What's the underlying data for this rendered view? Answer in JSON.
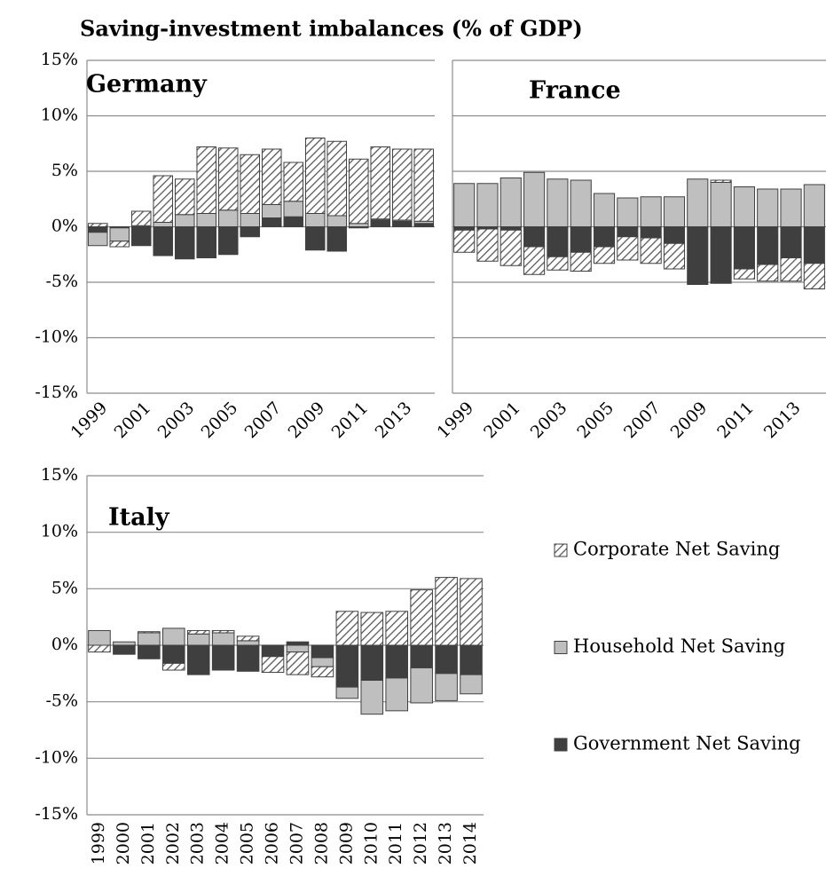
{
  "title": "Saving-investment imbalances (% of GDP)",
  "chart_data": [
    {
      "type": "bar",
      "stacked": true,
      "title": "Germany",
      "categories": [
        "1999",
        null,
        "2001",
        null,
        "2003",
        null,
        "2005",
        null,
        "2007",
        null,
        "2009",
        null,
        "2011",
        null,
        "2013",
        null
      ],
      "ylim": [
        -15,
        15
      ],
      "yticks": [
        {
          "value": -15,
          "label": "-15%"
        },
        {
          "value": -10,
          "label": "-10%"
        },
        {
          "value": -5,
          "label": "-5%"
        },
        {
          "value": 0,
          "label": "0%"
        },
        {
          "value": 5,
          "label": "5%"
        },
        {
          "value": 10,
          "label": "10%"
        },
        {
          "value": 15,
          "label": "15%"
        }
      ],
      "grid": true,
      "series": [
        {
          "color": "#3f3f3f",
          "values": [
            -0.5,
            -0.1,
            -1.7,
            -2.6,
            -2.9,
            -2.8,
            -2.5,
            -0.9,
            0.8,
            0.9,
            -2.1,
            -2.2,
            -0.1,
            0.6,
            0.5,
            0.3
          ]
        },
        {
          "color": "#bfbfbf",
          "values": [
            -1.2,
            -1.2,
            0.1,
            0.4,
            1.1,
            1.2,
            1.5,
            1.2,
            1.2,
            1.4,
            1.2,
            1.0,
            0.3,
            0.1,
            0.1,
            0.2
          ]
        },
        {
          "color": "#595959",
          "hatch": true,
          "values": [
            0.3,
            -0.5,
            1.3,
            4.2,
            3.2,
            6.0,
            5.6,
            5.3,
            5.0,
            3.5,
            6.8,
            6.7,
            5.8,
            6.5,
            6.4,
            6.5
          ]
        }
      ]
    },
    {
      "type": "bar",
      "stacked": true,
      "title": "France",
      "categories": [
        "1999",
        null,
        "2001",
        null,
        "2003",
        null,
        "2005",
        null,
        "2007",
        null,
        "2009",
        null,
        "2011",
        null,
        "2013",
        null
      ],
      "ylim": [
        -15,
        15
      ],
      "yticks": [
        -15,
        -10,
        -5,
        0,
        5,
        10,
        15
      ],
      "grid": true,
      "series": [
        {
          "color": "#3f3f3f",
          "values": [
            -0.3,
            -0.2,
            -0.3,
            -1.8,
            -2.7,
            -2.3,
            -1.8,
            -0.9,
            -1.0,
            -1.5,
            -5.2,
            -5.1,
            -3.8,
            -3.4,
            -2.8,
            -3.3
          ]
        },
        {
          "color": "#bfbfbf",
          "values": [
            3.9,
            3.9,
            4.4,
            4.9,
            4.3,
            4.2,
            3.0,
            2.6,
            2.7,
            2.7,
            4.3,
            4.0,
            3.6,
            3.4,
            3.4,
            3.8
          ]
        },
        {
          "color": "#595959",
          "hatch": true,
          "values": [
            -2.0,
            -2.9,
            -3.2,
            -2.5,
            -1.2,
            -1.7,
            -1.5,
            -2.1,
            -2.3,
            -2.3,
            0.0,
            0.2,
            -0.9,
            -1.5,
            -2.1,
            -2.3
          ]
        }
      ]
    },
    {
      "type": "bar",
      "stacked": true,
      "title": "Italy",
      "categories": [
        "1999",
        "2000",
        "2001",
        "2002",
        "2003",
        "2004",
        "2005",
        "2006",
        "2007",
        "2008",
        "2009",
        "2010",
        "2011",
        "2012",
        "2013",
        "2014"
      ],
      "ylim": [
        -15,
        15
      ],
      "yticks": [
        {
          "value": -15,
          "label": "-15%"
        },
        {
          "value": -10,
          "label": "-10%"
        },
        {
          "value": -5,
          "label": "-5%"
        },
        {
          "value": 0,
          "label": "0%"
        },
        {
          "value": 5,
          "label": "5%"
        },
        {
          "value": 10,
          "label": "10%"
        },
        {
          "value": 15,
          "label": "15%"
        }
      ],
      "grid": true,
      "series": [
        {
          "name": "Government Net Saving",
          "color": "#3f3f3f",
          "values": [
            0.0,
            -0.8,
            -1.2,
            -1.6,
            -2.6,
            -2.2,
            -2.3,
            -1.0,
            0.3,
            -1.1,
            -3.7,
            -3.1,
            -2.9,
            -2.0,
            -2.5,
            -2.6
          ]
        },
        {
          "name": "Household Net Saving",
          "color": "#bfbfbf",
          "values": [
            1.3,
            0.3,
            1.1,
            1.5,
            1.0,
            1.1,
            0.4,
            0.0,
            -0.6,
            -0.8,
            -1.0,
            -3.0,
            -2.9,
            -3.1,
            -2.4,
            -1.7
          ]
        },
        {
          "name": "Corporate Net Saving",
          "color": "#595959",
          "hatch": true,
          "values": [
            -0.6,
            0.0,
            0.1,
            -0.6,
            0.3,
            0.2,
            0.4,
            -1.4,
            -2.0,
            -0.9,
            3.0,
            2.9,
            3.0,
            4.9,
            6.0,
            5.9
          ]
        }
      ]
    }
  ]
}
